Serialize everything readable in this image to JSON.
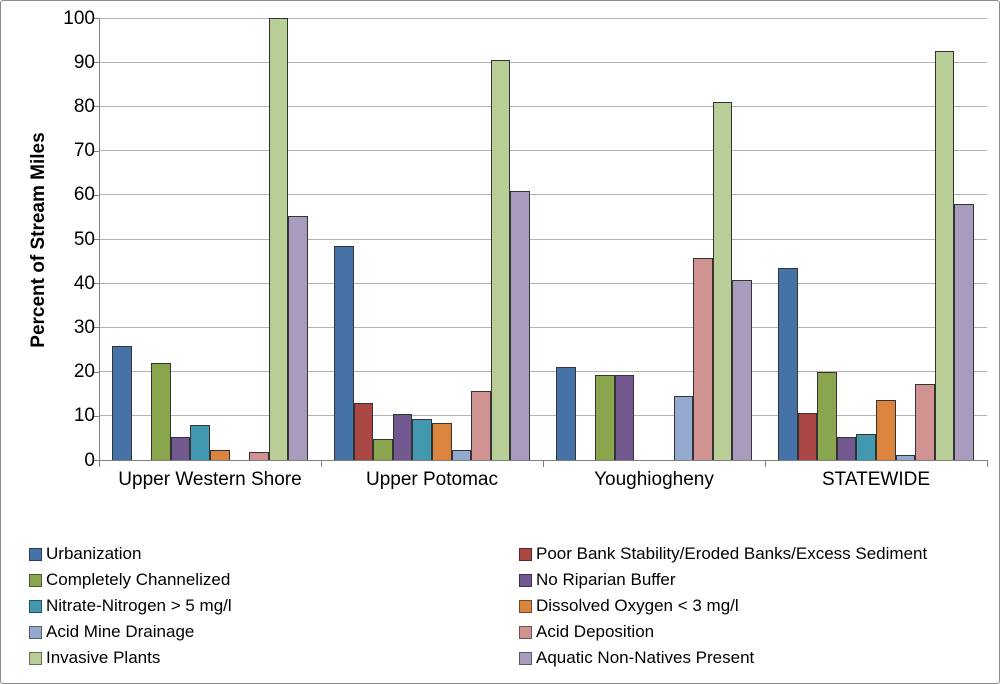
{
  "chart_data": {
    "type": "bar",
    "title": "",
    "xlabel": "",
    "ylabel": "Percent of Stream Miles",
    "ylim": [
      0,
      100
    ],
    "yticks": [
      0,
      10,
      20,
      30,
      40,
      50,
      60,
      70,
      80,
      90,
      100
    ],
    "grid": true,
    "legend_position": "bottom, two columns",
    "categories": [
      "Upper Western Shore",
      "Upper Potomac",
      "Youghiogheny",
      "STATEWIDE"
    ],
    "series": [
      {
        "name": "Urbanization",
        "color": "#4572A7",
        "values": [
          25.8,
          48.5,
          21.0,
          43.5
        ]
      },
      {
        "name": "Poor Bank Stability/Eroded Banks/Excess Sediment",
        "color": "#AA4643",
        "values": [
          0,
          12.8,
          0,
          10.6
        ]
      },
      {
        "name": "Completely Channelized",
        "color": "#89A54E",
        "values": [
          22.0,
          4.7,
          19.3,
          19.8
        ]
      },
      {
        "name": "No Riparian Buffer",
        "color": "#71588F",
        "values": [
          5.2,
          10.4,
          19.3,
          5.3
        ]
      },
      {
        "name": "Nitrate-Nitrogen > 5 mg/l",
        "color": "#4198AF",
        "values": [
          8.0,
          9.2,
          0,
          5.9
        ]
      },
      {
        "name": "Dissolved Oxygen < 3 mg/l",
        "color": "#DB843D",
        "values": [
          2.2,
          8.4,
          0,
          13.5
        ]
      },
      {
        "name": "Acid Mine Drainage",
        "color": "#93A9CF",
        "values": [
          0,
          2.2,
          14.4,
          1.2
        ]
      },
      {
        "name": "Acid Deposition",
        "color": "#D19392",
        "values": [
          1.8,
          15.6,
          45.7,
          17.2
        ]
      },
      {
        "name": "Invasive Plants",
        "color": "#B9CD96",
        "values": [
          100.0,
          90.6,
          81.0,
          92.6
        ]
      },
      {
        "name": "Aquatic Non-Natives Present",
        "color": "#A99BBE",
        "values": [
          55.3,
          60.8,
          40.8,
          57.9
        ]
      }
    ],
    "legend_columns": [
      [
        0,
        2,
        4,
        6,
        8
      ],
      [
        1,
        3,
        5,
        7,
        9
      ]
    ]
  },
  "layout_colors": {
    "gridline": "#b3b3b3",
    "axis": "#808080",
    "text": "#000000",
    "background": "#ffffff",
    "frame_border": "#8a8a8a"
  }
}
